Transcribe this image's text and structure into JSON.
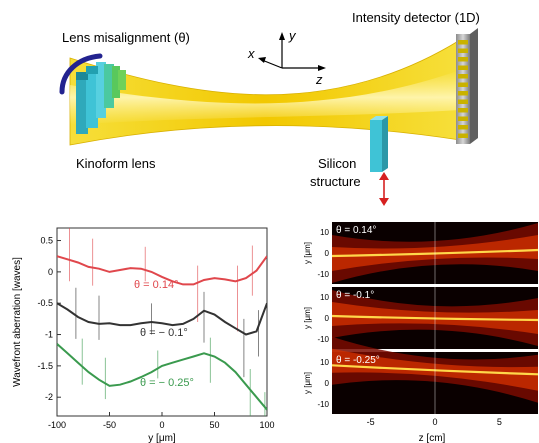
{
  "schematic": {
    "lens_misalignment_label": "Lens misalignment (θ)",
    "detector_label": "Intensity detector (1D)",
    "lens_label": "Kinoform lens",
    "silicon_label_line1": "Silicon",
    "silicon_label_line2": "structure",
    "axis_x": "x",
    "axis_y": "y",
    "axis_z": "z",
    "beam_color": "#f2d200",
    "lens_color": "#3fc3d6",
    "detector_color": "#c9b200"
  },
  "chart_data": [
    {
      "type": "line",
      "ylabel": "Wavefront aberration [waves]",
      "xlabel": "y [μm]",
      "xlim": [
        -100,
        100
      ],
      "ylim": [
        -2.3,
        0.7
      ],
      "x_ticks": [
        "-100",
        "-50",
        "0",
        "50",
        "100"
      ],
      "y_ticks": [
        "0.5",
        "0",
        "-0.5",
        "-1",
        "-1.5",
        "-2"
      ],
      "x": [
        -100,
        -90,
        -80,
        -70,
        -60,
        -50,
        -40,
        -30,
        -20,
        -10,
        0,
        10,
        20,
        30,
        40,
        50,
        60,
        70,
        80,
        90,
        100
      ],
      "series": [
        {
          "name": "θ = 0.14°",
          "color": "#e0474c",
          "values": [
            0.25,
            0.2,
            0.15,
            0.08,
            0.05,
            0.0,
            0.03,
            0.06,
            0.05,
            0.0,
            -0.08,
            -0.15,
            -0.2,
            -0.2,
            -0.13,
            -0.1,
            -0.12,
            -0.15,
            -0.1,
            0.02,
            0.25
          ]
        },
        {
          "name": "θ = − 0.1°",
          "color": "#333333",
          "values": [
            -0.5,
            -0.6,
            -0.72,
            -0.8,
            -0.83,
            -0.82,
            -0.85,
            -0.85,
            -0.82,
            -0.8,
            -0.82,
            -0.85,
            -0.83,
            -0.75,
            -0.62,
            -0.68,
            -0.8,
            -0.9,
            -1.0,
            -0.95,
            -0.5
          ]
        },
        {
          "name": "θ = − 0.25°",
          "color": "#3a9a4e",
          "values": [
            -1.15,
            -1.3,
            -1.45,
            -1.6,
            -1.72,
            -1.82,
            -1.8,
            -1.75,
            -1.68,
            -1.6,
            -1.5,
            -1.45,
            -1.4,
            -1.35,
            -1.3,
            -1.35,
            -1.45,
            -1.6,
            -1.8,
            -2.0,
            -2.2
          ]
        }
      ]
    },
    {
      "type": "heatmap",
      "xlabel": "z [cm]",
      "ylabel": "y [μm]",
      "xlim": [
        -8,
        8
      ],
      "x_ticks": [
        "-5",
        "0",
        "5"
      ],
      "y_ticks": [
        "10",
        "0",
        "-10"
      ],
      "panels": [
        {
          "label": "θ = 0.14°",
          "focus_y": 0,
          "tilt": 0.6
        },
        {
          "label": "θ = -0.1°",
          "focus_y": 0,
          "tilt": -0.4
        },
        {
          "label": "θ = -0.25°",
          "focus_y": 6,
          "tilt": -0.9
        }
      ]
    }
  ]
}
